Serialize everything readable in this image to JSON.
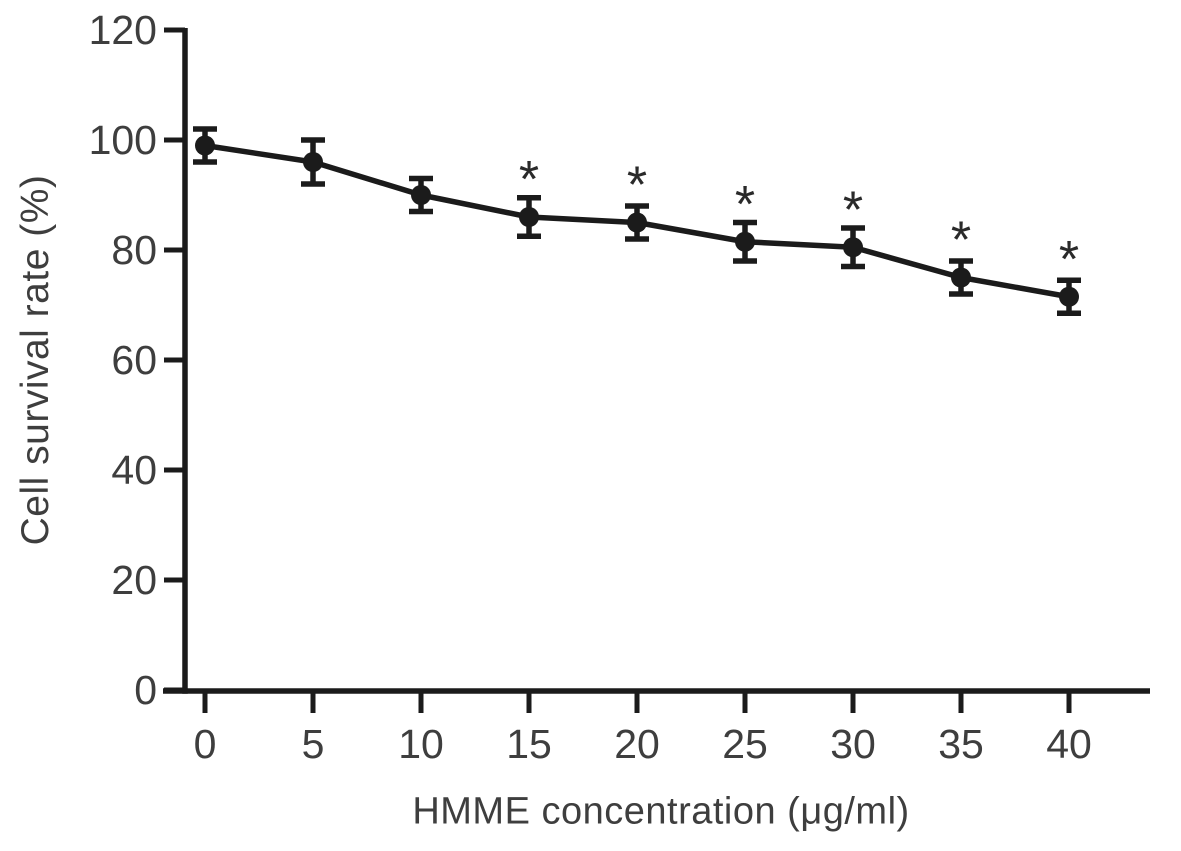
{
  "figure": {
    "background_color": "#ffffff",
    "text_color": "#3e3e3e",
    "line_color": "#1b1b1b"
  },
  "chart_data": {
    "type": "line",
    "title": "",
    "xlabel": "HMME concentration (μg/ml)",
    "ylabel": "Cell survival rate (%)",
    "x": [
      0,
      5,
      10,
      15,
      20,
      25,
      30,
      35,
      40
    ],
    "series": [
      {
        "name": "Cell survival rate",
        "values": [
          99,
          96,
          90,
          86,
          85,
          81.5,
          80.5,
          75,
          71.5
        ],
        "error_bars": [
          3,
          4,
          3,
          3.5,
          3,
          3.5,
          3.5,
          3,
          3
        ],
        "significant": [
          false,
          false,
          false,
          true,
          true,
          true,
          true,
          true,
          true
        ],
        "marker": "filled-circle",
        "color": "#1b1b1b"
      }
    ],
    "annotations": {
      "significance_symbol": "*",
      "applies_to_x": [
        15,
        20,
        25,
        30,
        35,
        40
      ]
    },
    "x_ticks": [
      0,
      5,
      10,
      15,
      20,
      25,
      30,
      35,
      40
    ],
    "y_ticks": [
      0,
      20,
      40,
      60,
      80,
      100,
      120
    ],
    "xlim": [
      0,
      40
    ],
    "ylim": [
      0,
      120
    ],
    "grid": false,
    "legend": false
  }
}
